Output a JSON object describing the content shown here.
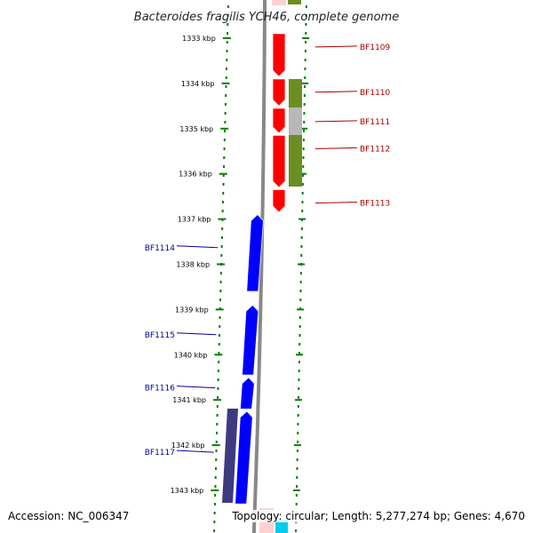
{
  "title": "Bacteroides fragilis YCH46, complete genome",
  "footer": {
    "accession": "Accession: NC_006347",
    "summary": "Topology: circular; Length: 5,277,274 bp; Genes: 4,670"
  },
  "colors": {
    "forward_cds": "#ff0000",
    "reverse_cds": "#0000ff",
    "cog_green": "#6b8e23",
    "cog_gray": "#b8b8b8",
    "cog_purple": "#3e3a80",
    "backbone": "#888888",
    "ticks": "#008000",
    "label_forward": "#aa0000",
    "label_reverse": "#000099"
  },
  "ticks": [
    {
      "label": "1333 kbp",
      "kbp": 1333
    },
    {
      "label": "1334 kbp",
      "kbp": 1334
    },
    {
      "label": "1335 kbp",
      "kbp": 1335
    },
    {
      "label": "1336 kbp",
      "kbp": 1336
    },
    {
      "label": "1337 kbp",
      "kbp": 1337
    },
    {
      "label": "1338 kbp",
      "kbp": 1338
    },
    {
      "label": "1339 kbp",
      "kbp": 1339
    },
    {
      "label": "1340 kbp",
      "kbp": 1340
    },
    {
      "label": "1341 kbp",
      "kbp": 1341
    },
    {
      "label": "1342 kbp",
      "kbp": 1342
    },
    {
      "label": "1343 kbp",
      "kbp": 1343
    }
  ],
  "genes": [
    {
      "label": "BF1109",
      "strand": "forward",
      "start_kbp": 1332.9,
      "end_kbp": 1333.85
    },
    {
      "label": "BF1110",
      "strand": "forward",
      "start_kbp": 1333.9,
      "end_kbp": 1334.5
    },
    {
      "label": "BF1111",
      "strand": "forward",
      "start_kbp": 1334.55,
      "end_kbp": 1335.1
    },
    {
      "label": "BF1112",
      "strand": "forward",
      "start_kbp": 1335.15,
      "end_kbp": 1336.3
    },
    {
      "label": "BF1113",
      "strand": "forward",
      "start_kbp": 1336.35,
      "end_kbp": 1336.85
    },
    {
      "label": "BF1114",
      "strand": "reverse",
      "start_kbp": 1336.9,
      "end_kbp": 1338.6
    },
    {
      "label": "BF1115",
      "strand": "reverse",
      "start_kbp": 1338.9,
      "end_kbp": 1340.45
    },
    {
      "label": "BF1116",
      "strand": "reverse",
      "start_kbp": 1340.5,
      "end_kbp": 1341.2
    },
    {
      "label": "BF1117",
      "strand": "reverse",
      "start_kbp": 1341.25,
      "end_kbp": 1343.3
    }
  ]
}
